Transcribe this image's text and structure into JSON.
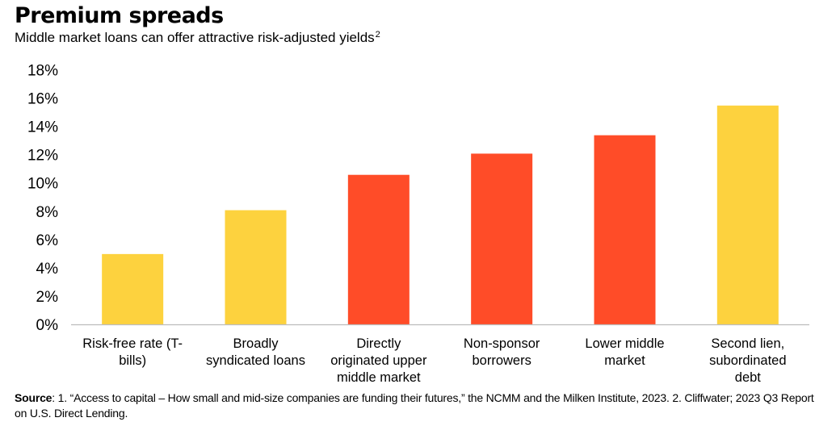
{
  "title": "Premium spreads",
  "subtitle": "Middle market loans can offer attractive risk-adjusted yields",
  "subtitle_note": "2",
  "source_label": "Source",
  "source_text": ": 1. “Access to capital – How small and mid-size companies are funding their futures,” the NCMM and the Milken Institute, 2023. 2. Cliffwater; 2023 Q3 Report on U.S. Direct Lending.",
  "colors": {
    "yellow": "#FDD23E",
    "red": "#FF4C28"
  },
  "chart_data": {
    "type": "bar",
    "categories": [
      [
        "Risk-free rate (T-",
        "bills)"
      ],
      [
        "Broadly",
        "syndicated loans"
      ],
      [
        "Directly",
        "originated upper",
        "middle market"
      ],
      [
        "Non-sponsor",
        "borrowers"
      ],
      [
        "Lower middle",
        "market"
      ],
      [
        "Second lien,",
        "subordinated",
        "debt"
      ]
    ],
    "values": [
      5.0,
      8.1,
      10.6,
      12.1,
      13.4,
      15.5
    ],
    "bar_colors": [
      "yellow",
      "yellow",
      "red",
      "red",
      "red",
      "yellow"
    ],
    "ylim": [
      0,
      18
    ],
    "yticks": [
      0,
      2,
      4,
      6,
      8,
      10,
      12,
      14,
      16,
      18
    ],
    "ytick_labels": [
      "0%",
      "2%",
      "4%",
      "6%",
      "8%",
      "10%",
      "12%",
      "14%",
      "16%",
      "18%"
    ],
    "grid": false,
    "legend": "none"
  }
}
